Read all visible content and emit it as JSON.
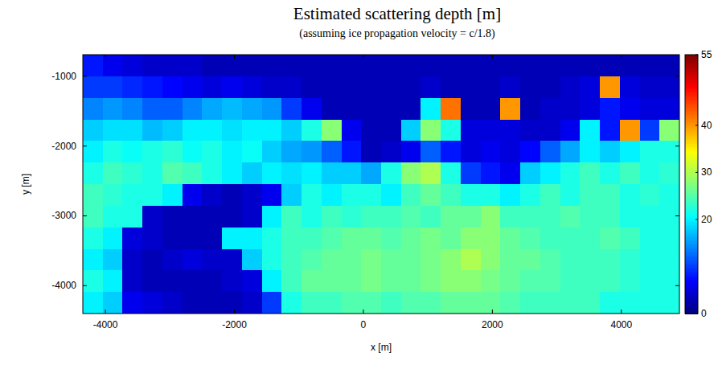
{
  "chart_data": {
    "type": "heatmap",
    "title": "Estimated scattering depth [m]",
    "subtitle": "(assuming ice propagation velocity  = c/1.8)",
    "x_label": "x [m]",
    "y_label": "y [m]",
    "xlim": [
      -4350,
      4900
    ],
    "ylim": [
      -4400,
      -690
    ],
    "xticks": [
      -4000,
      -2000,
      0,
      2000,
      4000
    ],
    "yticks": [
      -1000,
      -2000,
      -3000,
      -4000
    ],
    "values": [
      [
        8,
        6,
        5,
        4,
        4,
        4,
        3,
        3,
        3,
        3,
        3,
        3,
        3,
        3,
        3,
        3,
        3,
        3,
        3,
        3,
        3,
        3,
        3,
        3,
        3,
        3,
        3,
        3,
        3,
        3
      ],
      [
        10,
        10,
        9,
        8,
        7,
        6,
        5,
        6,
        5,
        4,
        4,
        3,
        3,
        3,
        3,
        3,
        3,
        4,
        3,
        3,
        3,
        4,
        3,
        3,
        4,
        5,
        40,
        5,
        4,
        4
      ],
      [
        14,
        15,
        14,
        12,
        12,
        14,
        16,
        17,
        16,
        15,
        10,
        6,
        3,
        3,
        3,
        3,
        3,
        20,
        42,
        3,
        3,
        40,
        3,
        4,
        4,
        5,
        8,
        6,
        5,
        5
      ],
      [
        18,
        19,
        19,
        17,
        18,
        20,
        20,
        19,
        20,
        20,
        18,
        22,
        28,
        6,
        3,
        3,
        18,
        28,
        22,
        5,
        5,
        5,
        4,
        4,
        6,
        20,
        8,
        40,
        10,
        28
      ],
      [
        20,
        22,
        21,
        22,
        23,
        21,
        22,
        20,
        21,
        18,
        16,
        15,
        12,
        8,
        3,
        4,
        6,
        12,
        8,
        5,
        6,
        5,
        7,
        12,
        16,
        20,
        18,
        20,
        22,
        22
      ],
      [
        22,
        24,
        23,
        22,
        25,
        24,
        22,
        20,
        18,
        20,
        19,
        20,
        18,
        18,
        16,
        22,
        28,
        30,
        22,
        10,
        8,
        6,
        18,
        20,
        22,
        24,
        22,
        24,
        22,
        23
      ],
      [
        24,
        23,
        22,
        22,
        20,
        6,
        4,
        3,
        4,
        6,
        18,
        22,
        20,
        22,
        22,
        20,
        24,
        26,
        24,
        22,
        22,
        20,
        22,
        24,
        22,
        24,
        24,
        22,
        23,
        22
      ],
      [
        24,
        22,
        22,
        4,
        3,
        3,
        3,
        3,
        4,
        20,
        24,
        22,
        24,
        23,
        24,
        24,
        25,
        24,
        26,
        26,
        28,
        24,
        24,
        24,
        25,
        24,
        24,
        22,
        22,
        22
      ],
      [
        22,
        20,
        5,
        4,
        3,
        3,
        3,
        20,
        20,
        22,
        24,
        24,
        25,
        26,
        26,
        25,
        26,
        27,
        26,
        28,
        28,
        26,
        25,
        24,
        24,
        24,
        25,
        24,
        22,
        22
      ],
      [
        20,
        18,
        4,
        3,
        4,
        5,
        4,
        4,
        18,
        22,
        24,
        25,
        26,
        26,
        27,
        26,
        26,
        27,
        28,
        30,
        28,
        26,
        26,
        25,
        24,
        24,
        24,
        23,
        22,
        22
      ],
      [
        22,
        20,
        4,
        3,
        3,
        3,
        3,
        4,
        5,
        20,
        24,
        26,
        26,
        26,
        27,
        26,
        26,
        27,
        28,
        28,
        27,
        26,
        25,
        25,
        24,
        24,
        24,
        23,
        22,
        22
      ],
      [
        20,
        18,
        6,
        5,
        4,
        3,
        3,
        3,
        4,
        10,
        22,
        24,
        24,
        25,
        25,
        24,
        25,
        25,
        26,
        26,
        26,
        25,
        24,
        24,
        24,
        24,
        22,
        22,
        22,
        22
      ]
    ],
    "colorbar": {
      "range": [
        0,
        55
      ],
      "ticks": [
        0,
        20,
        30,
        40,
        55
      ]
    }
  }
}
